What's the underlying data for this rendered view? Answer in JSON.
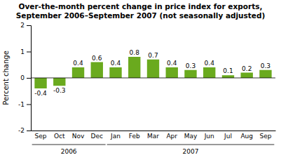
{
  "chart_data": {
    "type": "bar",
    "title": "Over-the-month percent change in price index for exports,\nSeptember 2006–September 2007 (not seasonally adjusted)",
    "y_label": "Percent change",
    "categories": [
      "Sep",
      "Oct",
      "Nov",
      "Dec",
      "Jan",
      "Feb",
      "Mar",
      "Apr",
      "May",
      "Jun",
      "Jul",
      "Aug",
      "Sep"
    ],
    "values": [
      -0.4,
      -0.3,
      0.4,
      0.6,
      0.4,
      0.8,
      0.7,
      0.4,
      0.3,
      0.4,
      0.1,
      0.2,
      0.3
    ],
    "color": "#6aaa1e",
    "ylim": [
      -2,
      2
    ],
    "yticks": [
      -2,
      -1,
      0,
      1,
      2
    ],
    "grid": false,
    "data_labels": true,
    "annotations": [
      {
        "text": "2006",
        "span": [
          0,
          3
        ]
      },
      {
        "text": "2007",
        "span": [
          4,
          12
        ]
      }
    ]
  }
}
